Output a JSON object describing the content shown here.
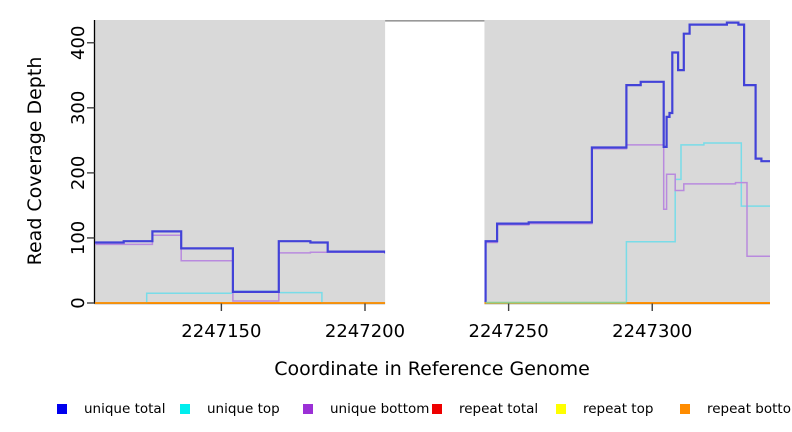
{
  "figure": {
    "xlabel": "Coordinate in Reference Genome",
    "ylabel": "Read Coverage Depth"
  },
  "chart_data": {
    "type": "line",
    "step": true,
    "title": "",
    "xlabel": "Coordinate in Reference Genome",
    "ylabel": "Read Coverage Depth",
    "xlim": [
      2247106,
      2247341
    ],
    "ylim": [
      0,
      435
    ],
    "x_ticks": [
      "2247150",
      "2247200",
      "2247250",
      "2247300"
    ],
    "y_ticks": [
      "0",
      "100",
      "200",
      "300",
      "400"
    ],
    "grid": false,
    "panel_background": "#d9d9d9",
    "legend_position": "bottom",
    "gap_region": {
      "x_start": 2247207,
      "x_end": 2247242,
      "fill": "#ffffff",
      "border_top_color": "#999999"
    },
    "series": [
      {
        "name": "repeat total",
        "line_color": "#ee0000",
        "width": 1.4,
        "points": [
          [
            2247106,
            0
          ],
          [
            2247341,
            0
          ]
        ]
      },
      {
        "name": "repeat top",
        "line_color": "#ffff00",
        "width": 1.4,
        "points": [
          [
            2247106,
            0
          ],
          [
            2247341,
            0
          ]
        ]
      },
      {
        "name": "unique top",
        "line_color": "#79dce8",
        "width": 1.5,
        "points": [
          [
            2247106,
            0
          ],
          [
            2247124,
            15
          ],
          [
            2247154,
            18
          ],
          [
            2247170,
            16
          ],
          [
            2247185,
            0
          ],
          [
            2247242,
            0
          ],
          [
            2247291,
            94
          ],
          [
            2247308,
            190
          ],
          [
            2247310,
            243
          ],
          [
            2247318,
            246
          ],
          [
            2247331,
            149
          ],
          [
            2247341,
            149
          ]
        ]
      },
      {
        "name": "unique bottom",
        "line_color": "#b98ade",
        "width": 1.5,
        "points": [
          [
            2247106,
            90
          ],
          [
            2247126,
            104
          ],
          [
            2247136,
            65
          ],
          [
            2247154,
            3
          ],
          [
            2247170,
            77
          ],
          [
            2247181,
            78
          ],
          [
            2247187,
            78
          ],
          [
            2247209,
            2
          ],
          [
            2247242,
            93
          ],
          [
            2247246,
            120
          ],
          [
            2247257,
            122
          ],
          [
            2247279,
            237
          ],
          [
            2247291,
            243
          ],
          [
            2247304,
            144
          ],
          [
            2247305,
            198
          ],
          [
            2247308,
            173
          ],
          [
            2247311,
            183
          ],
          [
            2247329,
            185
          ],
          [
            2247333,
            72
          ],
          [
            2247341,
            72
          ]
        ]
      },
      {
        "name": "unique total",
        "line_color": "#4242d8",
        "width": 2.2,
        "points": [
          [
            2247106,
            93
          ],
          [
            2247116,
            95
          ],
          [
            2247126,
            110
          ],
          [
            2247136,
            84
          ],
          [
            2247154,
            17
          ],
          [
            2247170,
            95
          ],
          [
            2247181,
            93
          ],
          [
            2247187,
            79
          ],
          [
            2247207,
            78
          ],
          [
            2247209,
            2
          ],
          [
            2247242,
            95
          ],
          [
            2247246,
            122
          ],
          [
            2247257,
            124
          ],
          [
            2247279,
            239
          ],
          [
            2247291,
            335
          ],
          [
            2247296,
            340
          ],
          [
            2247304,
            240
          ],
          [
            2247305,
            286
          ],
          [
            2247306,
            292
          ],
          [
            2247307,
            385
          ],
          [
            2247309,
            358
          ],
          [
            2247311,
            414
          ],
          [
            2247313,
            428
          ],
          [
            2247326,
            431
          ],
          [
            2247330,
            428
          ],
          [
            2247332,
            335
          ],
          [
            2247336,
            222
          ],
          [
            2247338,
            218
          ],
          [
            2247341,
            218
          ]
        ]
      },
      {
        "name": "repeat bottom",
        "line_color": "#ff8c00",
        "width": 1.8,
        "points": [
          [
            2247106,
            0
          ],
          [
            2247341,
            0
          ]
        ]
      }
    ],
    "overlap_blend_segments": [
      {
        "x_start": 2247242,
        "x_end": 2247291,
        "y": 0,
        "color": "#8fcf8f"
      }
    ]
  },
  "legend": {
    "items": [
      {
        "label": "unique total",
        "color": "#0000ee"
      },
      {
        "label": "unique top",
        "color": "#00eeee"
      },
      {
        "label": "unique bottom",
        "color": "#9b30d6"
      },
      {
        "label": "repeat total",
        "color": "#ee0000"
      },
      {
        "label": "repeat top",
        "color": "#ffff00"
      },
      {
        "label": "repeat bottom",
        "color": "#ff8c00"
      }
    ]
  }
}
